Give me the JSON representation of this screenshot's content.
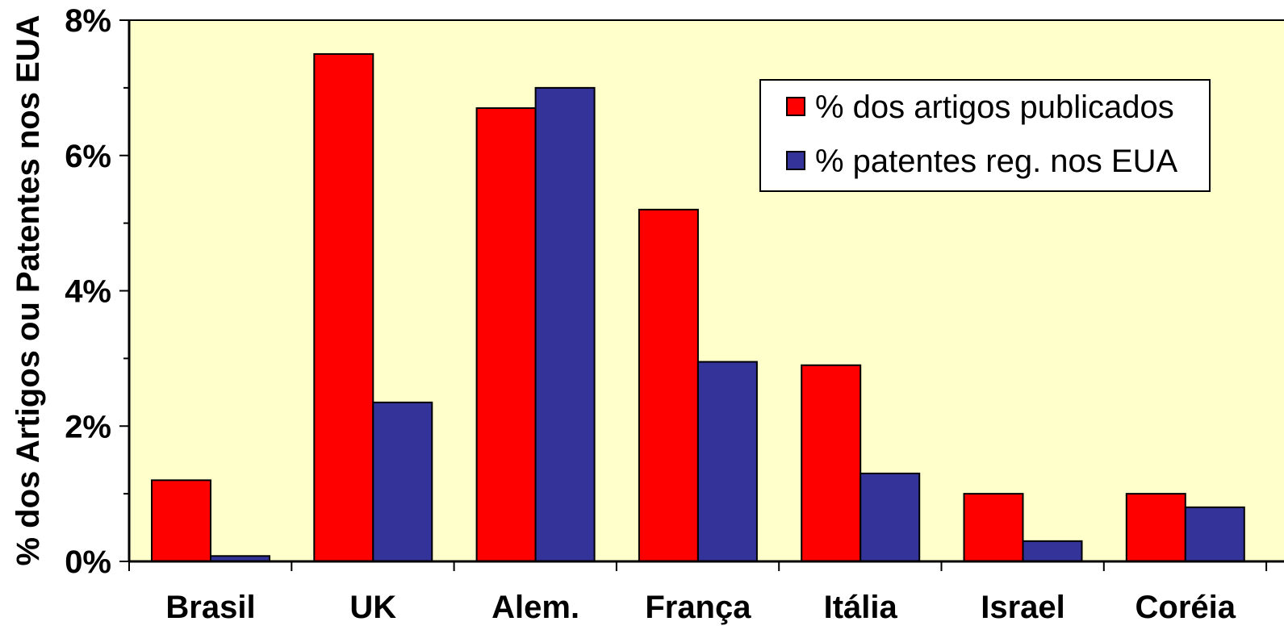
{
  "chart_data": {
    "type": "bar",
    "title": "",
    "xlabel": "",
    "ylabel": "% dos Artigos ou Patentes nos EUA",
    "categories": [
      "Brasil",
      "UK",
      "Alem.",
      "França",
      "Itália",
      "Israel",
      "Coréia"
    ],
    "series": [
      {
        "name": "% dos artigos publicados",
        "color": "#ff0000",
        "values": [
          1.2,
          7.5,
          6.7,
          5.2,
          2.9,
          1.0,
          1.0
        ]
      },
      {
        "name": "% patentes reg. nos EUA",
        "color": "#333399",
        "values": [
          0.08,
          2.35,
          7.0,
          2.95,
          1.3,
          0.3,
          0.8
        ]
      }
    ],
    "ylim": [
      0,
      8
    ],
    "yticks": [
      0,
      2,
      4,
      6,
      8
    ],
    "ytick_labels": [
      "0%",
      "2%",
      "4%",
      "6%",
      "8%"
    ],
    "legend_position": "top-right",
    "grid": false,
    "plot_background": "#ffffcc"
  }
}
